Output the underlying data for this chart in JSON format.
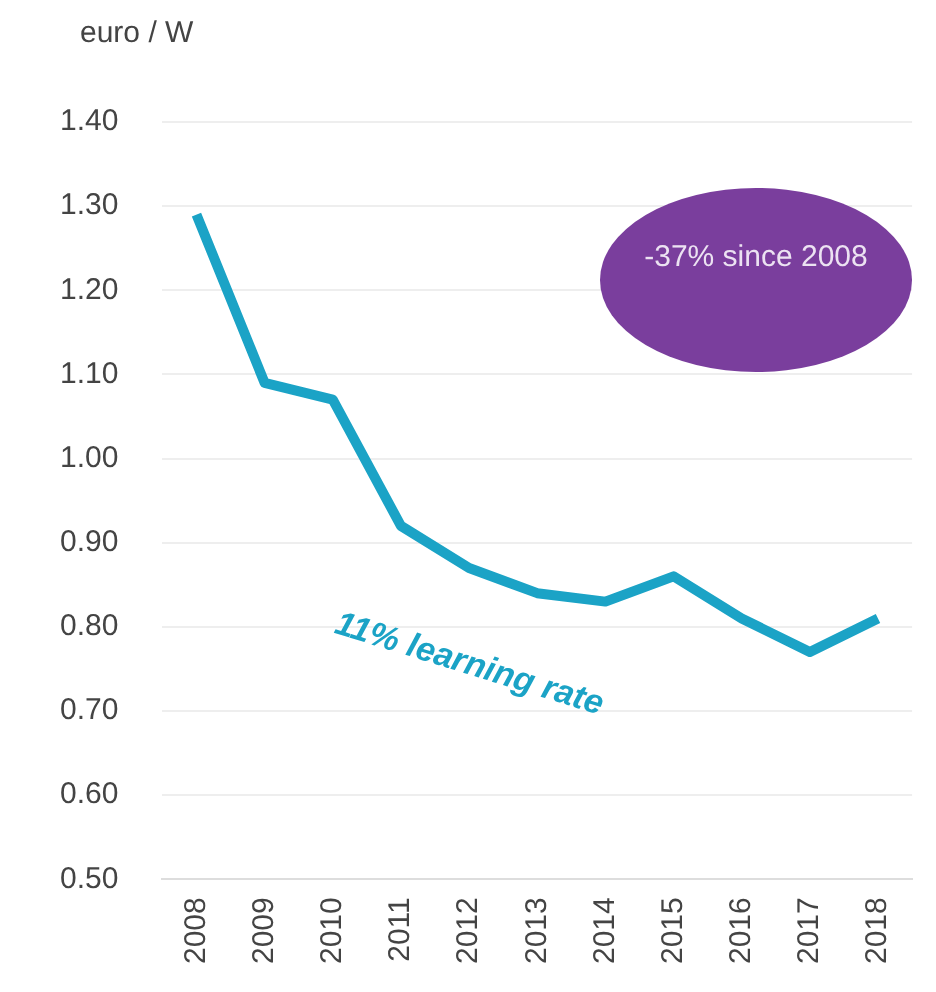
{
  "chart_data": {
    "type": "line",
    "ylabel": "euro / W",
    "categories": [
      "2008",
      "2009",
      "2010",
      "2011",
      "2012",
      "2013",
      "2014",
      "2015",
      "2016",
      "2017",
      "2018"
    ],
    "series": [
      {
        "color": "#1ba3c6",
        "values": [
          1.29,
          1.09,
          1.07,
          0.92,
          0.87,
          0.84,
          0.83,
          0.86,
          0.81,
          0.77,
          0.81
        ]
      }
    ],
    "ylim": [
      0.5,
      1.4
    ],
    "yticks": [
      {
        "value": 0.5,
        "label": "0.50"
      },
      {
        "value": 0.6,
        "label": "0.60"
      },
      {
        "value": 0.7,
        "label": "0.70"
      },
      {
        "value": 0.8,
        "label": "0.80"
      },
      {
        "value": 0.9,
        "label": "0.90"
      },
      {
        "value": 1.0,
        "label": "1.00"
      },
      {
        "value": 1.1,
        "label": "1.10"
      },
      {
        "value": 1.2,
        "label": "1.20"
      },
      {
        "value": 1.3,
        "label": "1.30"
      },
      {
        "value": 1.4,
        "label": "1.40"
      }
    ],
    "annotations": [
      "-37% since 2008",
      "11% learning rate"
    ],
    "grid": "y",
    "legend": false,
    "marker": "none",
    "line_style": "solid"
  }
}
